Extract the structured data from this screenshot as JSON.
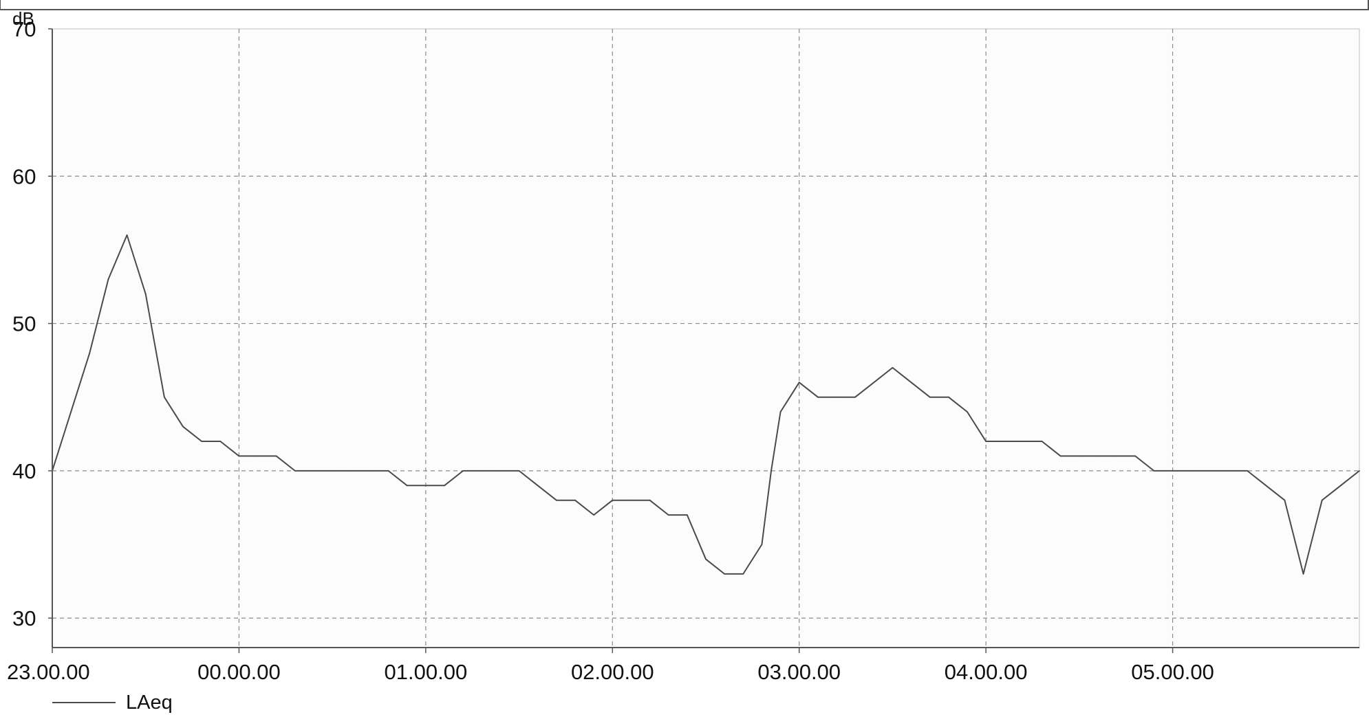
{
  "chart_data": {
    "type": "line",
    "title": "",
    "xlabel": "",
    "ylabel": "dB",
    "ylim": [
      28,
      70
    ],
    "yticks": [
      30,
      40,
      50,
      60,
      70
    ],
    "xlim_hours": [
      23.0,
      30.0
    ],
    "xticks": [
      "23.00.00",
      "00.00.00",
      "01.00.00",
      "02.00.00",
      "03.00.00",
      "04.00.00",
      "05.00.00"
    ],
    "grid": true,
    "grid_style": "dashed",
    "legend_position": "bottom-left",
    "colors": {
      "line": "#4a4a4a",
      "grid": "#8a8a8a",
      "axis": "#555555",
      "background": "#fcfcfc"
    },
    "series": [
      {
        "name": "LAeq",
        "x_hours": [
          23.0,
          23.1,
          23.2,
          23.3,
          23.4,
          23.5,
          23.6,
          23.7,
          23.8,
          23.9,
          24.0,
          24.1,
          24.2,
          24.3,
          24.4,
          24.5,
          24.6,
          24.7,
          24.8,
          24.9,
          25.0,
          25.1,
          25.2,
          25.3,
          25.4,
          25.5,
          25.6,
          25.7,
          25.8,
          25.9,
          26.0,
          26.1,
          26.2,
          26.3,
          26.4,
          26.5,
          26.6,
          26.7,
          26.8,
          26.85,
          26.9,
          27.0,
          27.1,
          27.2,
          27.3,
          27.4,
          27.5,
          27.6,
          27.7,
          27.8,
          27.9,
          28.0,
          28.1,
          28.2,
          28.3,
          28.4,
          28.5,
          28.6,
          28.7,
          28.8,
          28.9,
          29.0,
          29.1,
          29.2,
          29.3,
          29.4,
          29.5,
          29.6,
          29.7,
          29.8,
          29.9,
          30.0
        ],
        "values": [
          40,
          44,
          48,
          53,
          56,
          52,
          45,
          43,
          42,
          42,
          41,
          41,
          41,
          40,
          40,
          40,
          40,
          40,
          40,
          39,
          39,
          39,
          40,
          40,
          40,
          40,
          39,
          38,
          38,
          37,
          38,
          38,
          38,
          37,
          37,
          34,
          33,
          33,
          35,
          40,
          44,
          46,
          45,
          45,
          45,
          46,
          47,
          46,
          45,
          45,
          44,
          42,
          42,
          42,
          42,
          41,
          41,
          41,
          41,
          41,
          40,
          40,
          40,
          40,
          40,
          40,
          39,
          38,
          33,
          38,
          39,
          40
        ]
      }
    ]
  }
}
